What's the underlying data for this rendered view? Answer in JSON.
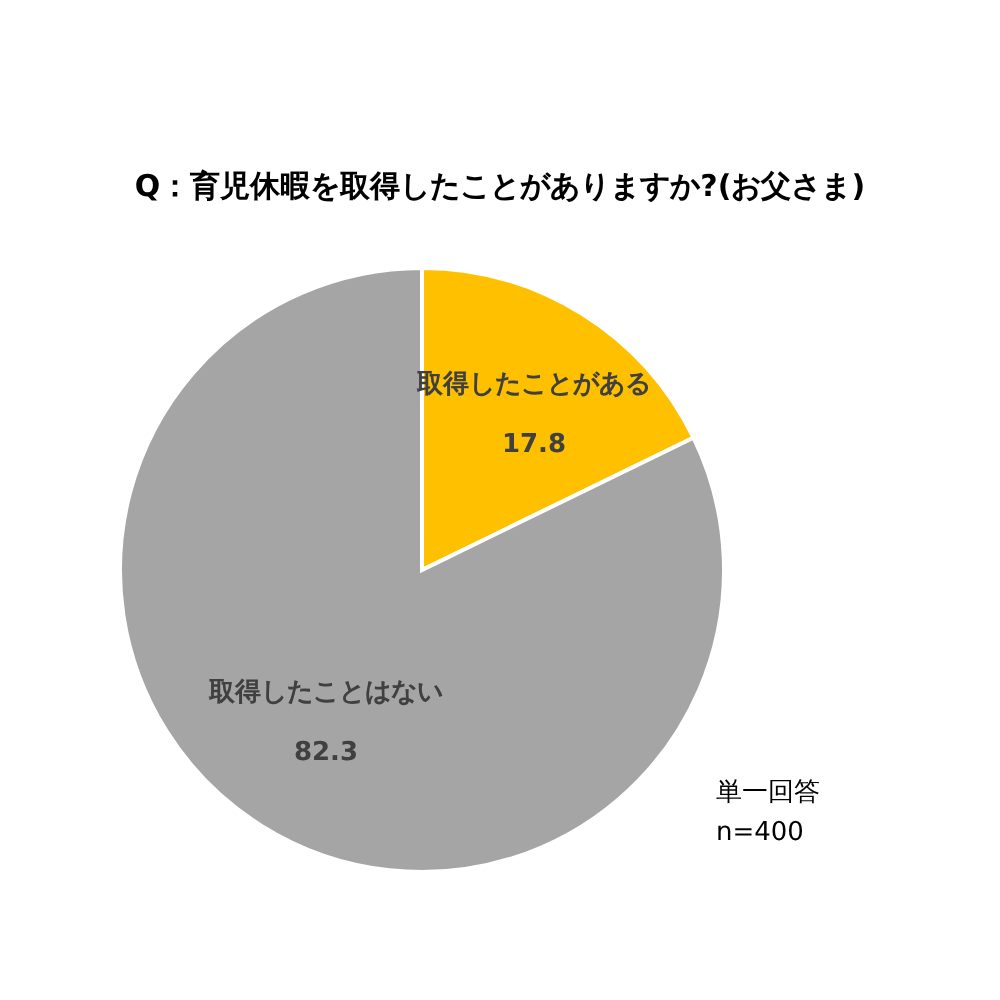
{
  "chart_data": {
    "type": "pie",
    "title": "Q：育児休暇を取得したことがありますか?(お父さま)",
    "categories": [
      "取得したことがある",
      "取得したことはない"
    ],
    "values": [
      17.8,
      82.3
    ],
    "colors": [
      "#ffc000",
      "#a5a5a5"
    ],
    "data_labels": true,
    "annotations": [
      "単一回答",
      "n=400"
    ]
  }
}
